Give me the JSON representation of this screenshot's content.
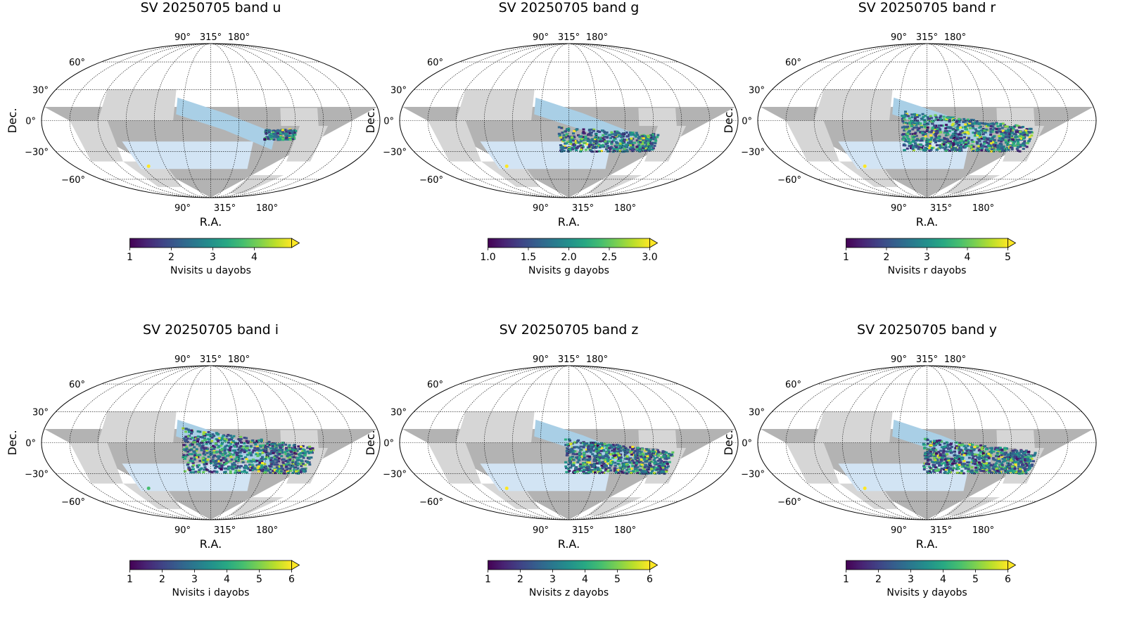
{
  "figure": {
    "panels": [
      {
        "title": "SV 20250705 band u",
        "band": "u",
        "xlabel": "R.A.",
        "ylabel": "Dec.",
        "top_ra_ticks": [
          "90°",
          "315°",
          "180°"
        ],
        "bottom_ra_ticks": [
          "90°",
          "315°",
          "180°"
        ],
        "dec_ticks": [
          "60°",
          "30°",
          "0°",
          "−30°",
          "−60°"
        ],
        "colorbar": {
          "label": "Nvisits u dayobs",
          "ticks": [
            "1",
            "2",
            "3",
            "4"
          ],
          "min": 1,
          "max": 4.9,
          "extend": "max"
        }
      },
      {
        "title": "SV 20250705 band g",
        "band": "g",
        "xlabel": "R.A.",
        "ylabel": "Dec.",
        "top_ra_ticks": [
          "90°",
          "315°",
          "180°"
        ],
        "bottom_ra_ticks": [
          "90°",
          "315°",
          "180°"
        ],
        "dec_ticks": [
          "60°",
          "30°",
          "0°",
          "−30°",
          "−60°"
        ],
        "colorbar": {
          "label": "Nvisits g dayobs",
          "ticks": [
            "1.0",
            "1.5",
            "2.0",
            "2.5",
            "3.0"
          ],
          "min": 1,
          "max": 3,
          "extend": "max"
        }
      },
      {
        "title": "SV 20250705 band r",
        "band": "r",
        "xlabel": "R.A.",
        "ylabel": "Dec.",
        "top_ra_ticks": [
          "90°",
          "315°",
          "180°"
        ],
        "bottom_ra_ticks": [
          "90°",
          "315°",
          "180°"
        ],
        "dec_ticks": [
          "60°",
          "30°",
          "0°",
          "−30°",
          "−60°"
        ],
        "colorbar": {
          "label": "Nvisits r dayobs",
          "ticks": [
            "1",
            "2",
            "3",
            "4",
            "5"
          ],
          "min": 1,
          "max": 5,
          "extend": "max"
        }
      },
      {
        "title": "SV 20250705 band i",
        "band": "i",
        "xlabel": "R.A.",
        "ylabel": "Dec.",
        "top_ra_ticks": [
          "90°",
          "315°",
          "180°"
        ],
        "bottom_ra_ticks": [
          "90°",
          "315°",
          "180°"
        ],
        "dec_ticks": [
          "60°",
          "30°",
          "0°",
          "−30°",
          "−60°"
        ],
        "colorbar": {
          "label": "Nvisits i dayobs",
          "ticks": [
            "1",
            "2",
            "3",
            "4",
            "5",
            "6"
          ],
          "min": 1,
          "max": 6,
          "extend": "max"
        }
      },
      {
        "title": "SV 20250705 band z",
        "band": "z",
        "xlabel": "R.A.",
        "ylabel": "Dec.",
        "top_ra_ticks": [
          "90°",
          "315°",
          "180°"
        ],
        "bottom_ra_ticks": [
          "90°",
          "315°",
          "180°"
        ],
        "dec_ticks": [
          "60°",
          "30°",
          "0°",
          "−30°",
          "−60°"
        ],
        "colorbar": {
          "label": "Nvisits z dayobs",
          "ticks": [
            "1",
            "2",
            "3",
            "4",
            "5",
            "6"
          ],
          "min": 1,
          "max": 6,
          "extend": "max"
        }
      },
      {
        "title": "SV 20250705 band y",
        "band": "y",
        "xlabel": "R.A.",
        "ylabel": "Dec.",
        "top_ra_ticks": [
          "90°",
          "315°",
          "180°"
        ],
        "bottom_ra_ticks": [
          "90°",
          "315°",
          "180°"
        ],
        "dec_ticks": [
          "60°",
          "30°",
          "0°",
          "−30°",
          "−60°"
        ],
        "colorbar": {
          "label": "Nvisits y dayobs",
          "ticks": [
            "1",
            "2",
            "3",
            "4",
            "5",
            "6"
          ],
          "min": 1,
          "max": 6,
          "extend": "max"
        }
      }
    ],
    "colors": {
      "footprint_dark": "#b3b3b3",
      "footprint_light": "#d6d6d6",
      "stripe_blue": "#a9cfe6",
      "wfd_light_blue": "#d2e4f4",
      "grid": "#000000",
      "colormap": "viridis"
    }
  },
  "chart_data": {
    "type": "heatmap",
    "projection": "mollweide",
    "ra_tick_values_deg": [
      90,
      315,
      180
    ],
    "dec_range": [
      -90,
      90
    ],
    "dec_gridlines": [
      60,
      30,
      0,
      -30,
      -60
    ],
    "colormap": "viridis",
    "panels": [
      {
        "band": "u",
        "colorbar_range": [
          1,
          4.9
        ],
        "coverage": "small patch near Dec −5° to −20°"
      },
      {
        "band": "g",
        "colorbar_range": [
          1,
          3.0
        ],
        "coverage": "strip Dec −5° to −30°"
      },
      {
        "band": "r",
        "colorbar_range": [
          1,
          5
        ],
        "coverage": "strip from Dec +10° to −30°"
      },
      {
        "band": "i",
        "colorbar_range": [
          1,
          6
        ],
        "coverage": "strip from Dec +15° to −30°"
      },
      {
        "band": "z",
        "colorbar_range": [
          1,
          6
        ],
        "coverage": "strip Dec +5° to −30°"
      },
      {
        "band": "y",
        "colorbar_range": [
          1,
          6
        ],
        "coverage": "strip Dec +5° to −30°"
      }
    ]
  }
}
